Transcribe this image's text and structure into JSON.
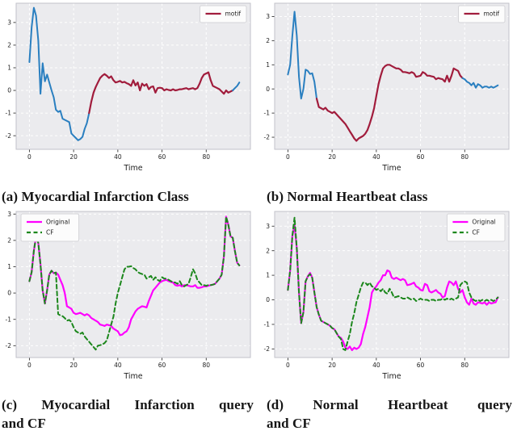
{
  "captions": {
    "a": "(a) Myocardial Infarction Class",
    "b": "(b) Normal Heartbeat class",
    "c_line1": "(c) Myocardial Infarction query",
    "c_line2": "and CF",
    "d_line1": "(d) Normal Heartbeat query",
    "d_line2": "and CF"
  },
  "style": {
    "plot_bg": "#ebebee",
    "grid_color": "#ffffff",
    "spine_color": "#c2c2ca",
    "tick_color": "#333333",
    "blue": "#2a7fc0",
    "motif_red": "#a11c3c",
    "magenta": "#ff00ff",
    "green": "#1c871c",
    "legend_bg": "#fcfcfc",
    "legend_border": "#d4d4d8"
  },
  "chart_data": [
    {
      "id": "a",
      "type": "line",
      "title": "",
      "xlabel": "Time",
      "xlim": [
        -6,
        100
      ],
      "ylim": [
        -2.6,
        3.85
      ],
      "xticks": [
        0,
        20,
        40,
        60,
        80
      ],
      "yticks": [
        -2,
        -1,
        0,
        1,
        2,
        3
      ],
      "legend": {
        "position": "tr",
        "entries": [
          {
            "label": "motif",
            "color": "#a11c3c",
            "dash": false
          }
        ]
      },
      "series": [
        {
          "name": "query-pre",
          "color": "#2a7fc0",
          "width": 2,
          "dash": false,
          "x_start": 0,
          "y": [
            1.25,
            2.8,
            3.65,
            3.3,
            2.2,
            -0.15,
            1.2,
            0.4,
            0.7,
            0.35,
            0.0,
            -0.3,
            -0.85,
            -0.95,
            -0.9,
            -1.25,
            -1.3,
            -1.35,
            -1.4,
            -1.9,
            -2.0,
            -2.1,
            -2.2,
            -2.15,
            -2.05,
            -1.7,
            -1.45,
            -1.0
          ]
        },
        {
          "name": "motif",
          "color": "#a11c3c",
          "width": 2.2,
          "dash": false,
          "x_start": 27,
          "y": [
            -1.0,
            -0.5,
            -0.1,
            0.15,
            0.35,
            0.55,
            0.65,
            0.72,
            0.65,
            0.55,
            0.62,
            0.45,
            0.35,
            0.38,
            0.42,
            0.35,
            0.38,
            0.32,
            0.28,
            0.2,
            0.45,
            0.22,
            0.35,
            0.0,
            0.3,
            0.2,
            0.28,
            0.05,
            0.15,
            0.18,
            -0.1,
            0.1,
            0.12,
            0.1,
            0.0,
            0.05,
            0.02,
            0.0,
            0.05,
            0.0,
            0.02,
            0.05,
            0.05,
            0.08,
            0.1,
            0.05,
            0.08,
            0.1,
            0.05,
            0.1,
            0.3,
            0.55,
            0.7,
            0.75,
            0.8,
            0.45,
            0.2,
            0.15,
            0.1,
            0.05,
            -0.05,
            -0.15,
            0.0,
            -0.1,
            -0.05,
            0.0
          ]
        },
        {
          "name": "query-post",
          "color": "#2a7fc0",
          "width": 2,
          "dash": false,
          "x_start": 92,
          "y": [
            0.0,
            0.1,
            0.2,
            0.35
          ]
        }
      ]
    },
    {
      "id": "b",
      "type": "line",
      "title": "",
      "xlabel": "Time",
      "xlim": [
        -6,
        100
      ],
      "ylim": [
        -2.5,
        3.55
      ],
      "xticks": [
        0,
        20,
        40,
        60,
        80
      ],
      "yticks": [
        -2,
        -1,
        0,
        1,
        2,
        3
      ],
      "legend": {
        "position": "tr",
        "entries": [
          {
            "label": "motif",
            "color": "#a11c3c",
            "dash": false
          }
        ]
      },
      "series": [
        {
          "name": "query-pre",
          "color": "#2a7fc0",
          "width": 2,
          "dash": false,
          "x_start": 0,
          "y": [
            0.6,
            1.0,
            2.2,
            3.2,
            2.2,
            0.5,
            -0.4,
            0.0,
            0.8,
            0.75,
            0.62,
            0.65,
            0.3,
            -0.4
          ]
        },
        {
          "name": "motif",
          "color": "#a11c3c",
          "width": 2.2,
          "dash": false,
          "x_start": 13,
          "y": [
            -0.4,
            -0.75,
            -0.8,
            -0.85,
            -0.78,
            -0.9,
            -0.95,
            -1.0,
            -0.95,
            -1.05,
            -1.15,
            -1.25,
            -1.35,
            -1.45,
            -1.6,
            -1.75,
            -1.9,
            -2.05,
            -2.15,
            -2.05,
            -2.0,
            -1.95,
            -1.85,
            -1.7,
            -1.45,
            -1.15,
            -0.8,
            -0.3,
            0.2,
            0.55,
            0.85,
            0.95,
            1.0,
            1.0,
            0.95,
            0.9,
            0.85,
            0.85,
            0.8,
            0.7,
            0.7,
            0.68,
            0.65,
            0.7,
            0.65,
            0.5,
            0.52,
            0.55,
            0.7,
            0.65,
            0.55,
            0.55,
            0.52,
            0.5,
            0.4,
            0.45,
            0.42,
            0.4,
            0.3,
            0.55,
            0.3,
            0.55,
            0.85,
            0.8,
            0.75,
            0.55,
            0.45
          ]
        },
        {
          "name": "query-post",
          "color": "#2a7fc0",
          "width": 2,
          "dash": false,
          "x_start": 79,
          "y": [
            0.45,
            0.4,
            0.3,
            0.25,
            0.15,
            0.25,
            0.05,
            0.2,
            0.15,
            0.05,
            0.1,
            0.1,
            0.05,
            0.1,
            0.05,
            0.1,
            0.15
          ]
        }
      ]
    },
    {
      "id": "c",
      "type": "line",
      "title": "",
      "xlabel": "Time",
      "xlim": [
        -6,
        100
      ],
      "ylim": [
        -2.45,
        3.1
      ],
      "xticks": [
        0,
        20,
        40,
        60,
        80
      ],
      "yticks": [
        -2,
        -1,
        0,
        1,
        2,
        3
      ],
      "legend": {
        "position": "tl",
        "entries": [
          {
            "label": "Original",
            "color": "#ff00ff",
            "dash": false
          },
          {
            "label": "CF",
            "color": "#1c871c",
            "dash": true
          }
        ]
      },
      "series": [
        {
          "name": "original",
          "color": "#ff00ff",
          "width": 2.2,
          "dash": false,
          "x_start": 0,
          "y": [
            0.45,
            0.8,
            1.6,
            2.15,
            1.9,
            1.1,
            0.1,
            -0.4,
            0.1,
            0.7,
            0.85,
            0.75,
            0.78,
            0.7,
            0.5,
            0.3,
            0.0,
            -0.5,
            -0.55,
            -0.6,
            -0.75,
            -0.8,
            -0.78,
            -0.75,
            -0.8,
            -0.85,
            -0.8,
            -0.85,
            -0.95,
            -1.0,
            -1.05,
            -1.1,
            -1.2,
            -1.22,
            -1.25,
            -1.2,
            -1.22,
            -1.25,
            -1.35,
            -1.4,
            -1.45,
            -1.6,
            -1.58,
            -1.5,
            -1.45,
            -1.3,
            -1.0,
            -0.85,
            -0.7,
            -0.6,
            -0.55,
            -0.5,
            -0.52,
            -0.55,
            -0.3,
            -0.1,
            0.1,
            0.2,
            0.3,
            0.4,
            0.45,
            0.48,
            0.5,
            0.45,
            0.42,
            0.4,
            0.3,
            0.28,
            0.3,
            0.25,
            0.3,
            0.3,
            0.28,
            0.25,
            0.25,
            0.3,
            0.2,
            0.2,
            0.22,
            0.25,
            0.25,
            0.28,
            0.3,
            0.32,
            0.35,
            0.45,
            0.55,
            0.7,
            1.4,
            2.9,
            2.6,
            2.15,
            2.1,
            1.6,
            1.15,
            1.05
          ]
        },
        {
          "name": "cf",
          "color": "#1c871c",
          "width": 2,
          "dash": true,
          "x_start": 0,
          "y": [
            0.45,
            0.8,
            1.6,
            2.15,
            1.9,
            1.1,
            0.1,
            -0.4,
            0.1,
            0.7,
            0.85,
            0.75,
            0.78,
            -0.8,
            -0.85,
            -0.88,
            -0.95,
            -1.05,
            -1.02,
            -1.1,
            -1.3,
            -1.45,
            -1.5,
            -1.55,
            -1.5,
            -1.65,
            -1.75,
            -1.85,
            -1.95,
            -2.05,
            -2.15,
            -2.0,
            -1.98,
            -1.95,
            -1.9,
            -1.8,
            -1.5,
            -1.2,
            -0.9,
            -0.4,
            0.0,
            0.3,
            0.6,
            0.9,
            1.0,
            1.0,
            1.02,
            0.95,
            0.9,
            0.8,
            0.75,
            0.72,
            0.7,
            0.55,
            0.6,
            0.65,
            0.5,
            0.6,
            0.5,
            0.45,
            0.6,
            0.55,
            0.55,
            0.5,
            0.45,
            0.42,
            0.4,
            0.35,
            0.45,
            0.3,
            0.25,
            0.3,
            0.35,
            0.6,
            0.9,
            0.75,
            0.5,
            0.4,
            0.3,
            0.3,
            0.28,
            0.3,
            0.3,
            0.32,
            0.35,
            0.45,
            0.55,
            0.7,
            1.4,
            2.9,
            2.6,
            2.15,
            2.1,
            1.6,
            1.15,
            1.05
          ]
        }
      ]
    },
    {
      "id": "d",
      "type": "line",
      "title": "",
      "xlabel": "Time",
      "xlim": [
        -6,
        100
      ],
      "ylim": [
        -2.35,
        3.6
      ],
      "xticks": [
        0,
        20,
        40,
        60,
        80
      ],
      "yticks": [
        -2,
        -1,
        0,
        1,
        2,
        3
      ],
      "legend": {
        "position": "tr",
        "entries": [
          {
            "label": "Original",
            "color": "#ff00ff",
            "dash": false
          },
          {
            "label": "CF",
            "color": "#1c871c",
            "dash": true
          }
        ]
      },
      "series": [
        {
          "name": "original",
          "color": "#ff00ff",
          "width": 2.2,
          "dash": false,
          "x_start": 0,
          "y": [
            0.4,
            1.2,
            2.6,
            3.05,
            2.1,
            0.3,
            -0.95,
            -0.5,
            0.75,
            0.95,
            1.1,
            0.9,
            0.3,
            -0.3,
            -0.6,
            -0.85,
            -0.9,
            -0.95,
            -1.0,
            -1.05,
            -1.15,
            -1.2,
            -1.35,
            -1.5,
            -1.55,
            -1.7,
            -1.95,
            -2.0,
            -1.9,
            -2.05,
            -1.95,
            -2.0,
            -1.95,
            -1.8,
            -1.4,
            -1.1,
            -0.7,
            -0.3,
            0.3,
            0.45,
            0.55,
            0.7,
            0.8,
            1.0,
            1.0,
            1.2,
            1.15,
            0.9,
            0.85,
            0.9,
            0.85,
            0.8,
            0.85,
            0.8,
            0.6,
            0.62,
            0.65,
            0.7,
            0.55,
            0.5,
            0.4,
            0.38,
            0.65,
            0.6,
            0.35,
            0.3,
            0.35,
            0.4,
            0.3,
            0.25,
            0.1,
            0.15,
            0.5,
            0.75,
            0.7,
            0.6,
            0.75,
            0.45,
            0.3,
            0.4,
            0.1,
            -0.1,
            -0.2,
            0.05,
            -0.15,
            -0.2,
            -0.1,
            -0.12,
            -0.15,
            -0.1,
            -0.2,
            -0.1,
            -0.15,
            -0.12,
            -0.1,
            0.1
          ]
        },
        {
          "name": "cf",
          "color": "#1c871c",
          "width": 2,
          "dash": true,
          "x_start": 0,
          "y": [
            0.4,
            1.2,
            2.6,
            3.35,
            2.1,
            0.3,
            -0.95,
            -0.5,
            0.75,
            0.95,
            1.05,
            0.9,
            0.3,
            -0.3,
            -0.6,
            -0.85,
            -0.9,
            -0.95,
            -1.0,
            -1.05,
            -1.15,
            -1.2,
            -1.35,
            -1.5,
            -1.6,
            -2.0,
            -2.05,
            -1.7,
            -1.4,
            -0.9,
            -0.55,
            -0.1,
            0.2,
            0.5,
            0.7,
            0.7,
            0.6,
            0.7,
            0.55,
            0.5,
            0.4,
            0.45,
            0.35,
            0.45,
            0.3,
            0.25,
            0.45,
            0.3,
            0.1,
            0.12,
            0.15,
            0.1,
            0.05,
            0.05,
            0.1,
            0.05,
            0.0,
            0.05,
            -0.05,
            0.0,
            0.05,
            0.0,
            0.0,
            0.0,
            -0.05,
            0.0,
            0.0,
            -0.05,
            0.0,
            0.0,
            0.05,
            0.0,
            0.05,
            0.0,
            0.05,
            0.0,
            0.05,
            0.1,
            0.6,
            0.7,
            0.75,
            0.7,
            0.3,
            0.1,
            0.0,
            -0.05,
            0.0,
            -0.05,
            0.0,
            -0.05,
            0.0,
            -0.05,
            0.0,
            -0.05,
            0.0,
            0.1
          ]
        }
      ]
    }
  ]
}
